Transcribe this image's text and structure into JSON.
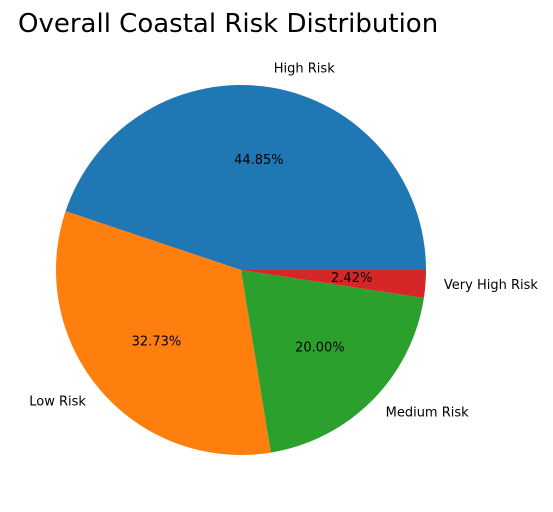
{
  "chart_data": {
    "type": "pie",
    "title": "Overall Coastal Risk Distribution",
    "categories": [
      "High Risk",
      "Low Risk",
      "Medium Risk",
      "Very High Risk"
    ],
    "values": [
      44.85,
      32.73,
      20.0,
      2.42
    ],
    "value_labels": [
      "44.85%",
      "32.73%",
      "20.00%",
      "2.42%"
    ],
    "colors": [
      "#1f77b4",
      "#ff7f0e",
      "#2ca02c",
      "#d62728"
    ],
    "start_angle_deg": 0,
    "direction": "counterclockwise",
    "legend": "none"
  }
}
